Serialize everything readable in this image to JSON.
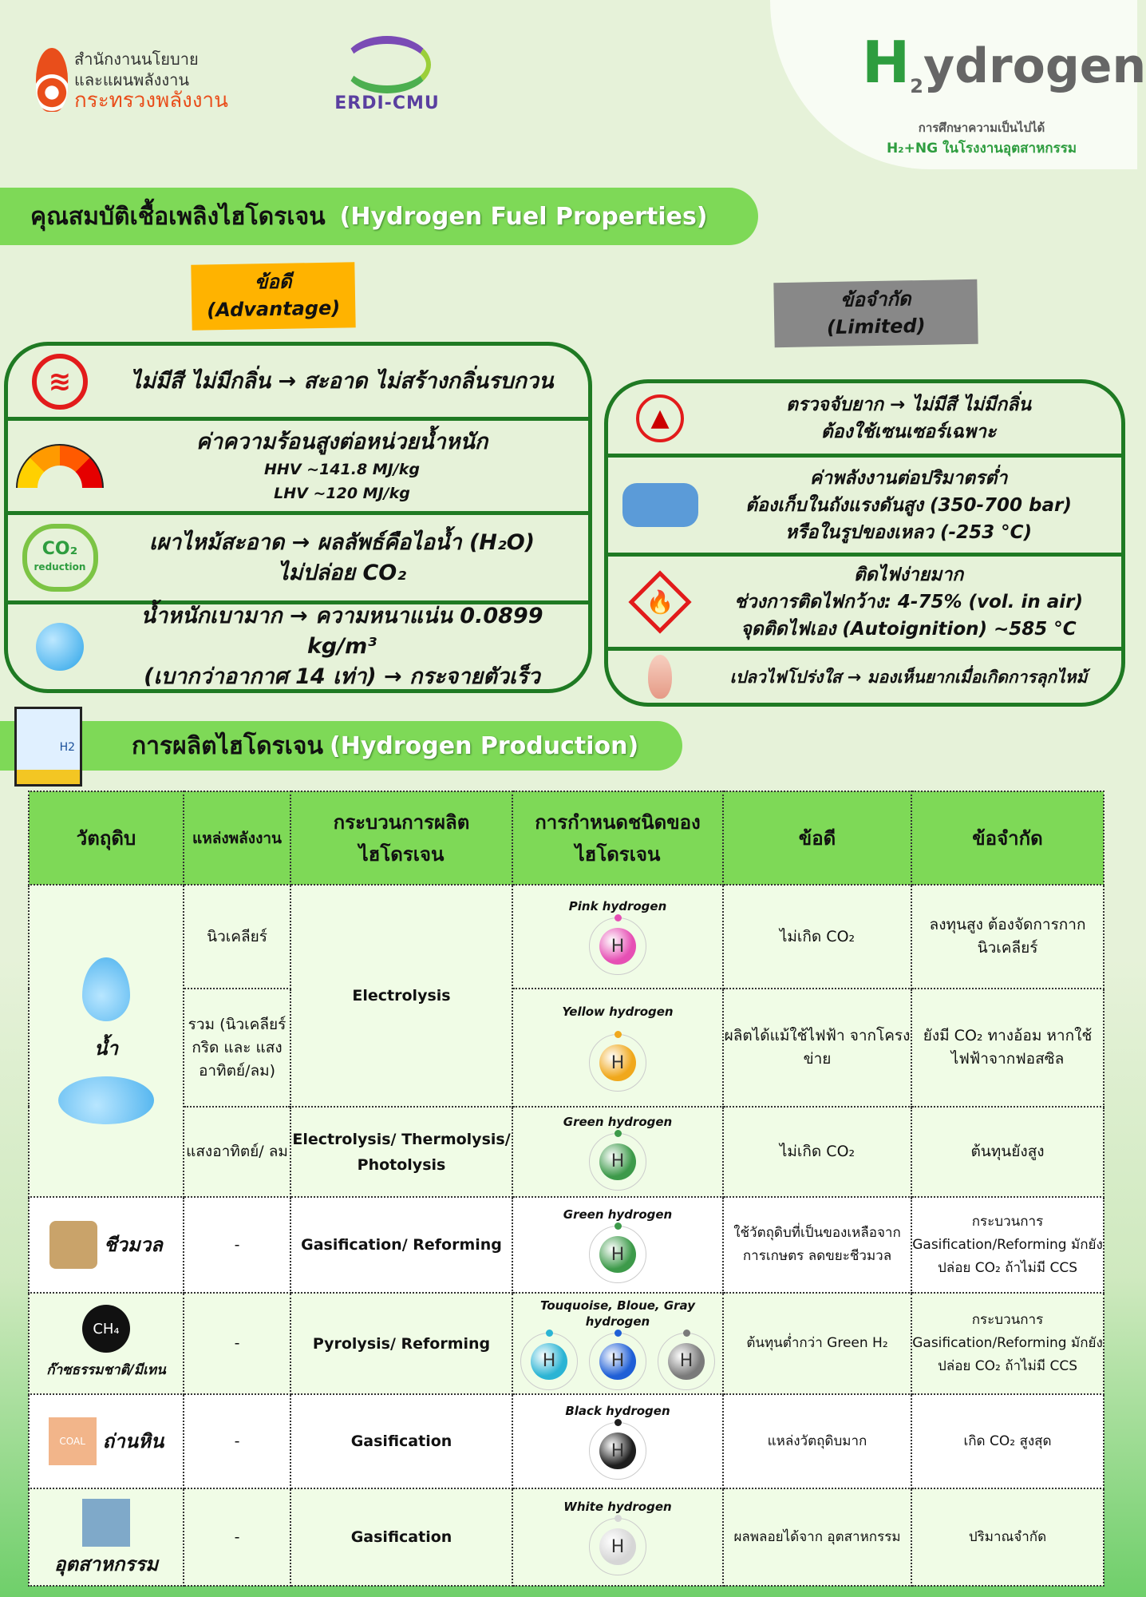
{
  "header": {
    "logo_ministry": {
      "line1": "สำนักงานนโยบาย",
      "line2": "และแผนพลังงาน",
      "line3": "กระทรวงพลังงาน"
    },
    "logo_erdi": "ERDI-CMU",
    "logo_project": {
      "mark_prefix": "H",
      "mark_sub": "2",
      "mark_rest": "ydrogen",
      "sub1": "การศึกษาความเป็นไปได้",
      "sub2": "H₂+NG ในโรงงานอุตสาหกรรม"
    }
  },
  "properties": {
    "title_th": "คุณสมบัติเชื้อเพลิงไฮโดรเจน",
    "title_en": "(Hydrogen Fuel Properties)",
    "advantage": {
      "tag_th": "ข้อดี",
      "tag_en": "(Advantage)",
      "items": [
        {
          "icon": "no-fire-icon",
          "lines": [
            "ไม่มีสี ไม่มีกลิ่น → สะอาด ไม่สร้างกลิ่นรบกวน"
          ]
        },
        {
          "icon": "gauge-icon",
          "lines": [
            "ค่าความร้อนสูงต่อหน่วยน้ำหนัก",
            "HHV ~141.8 MJ/kg",
            "LHV ~120 MJ/kg"
          ]
        },
        {
          "icon": "co2-reduction-icon",
          "icon_text": "CO₂",
          "icon_sub": "reduction",
          "lines": [
            "เผาไหม้สะอาด → ผลลัพธ์คือไอน้ำ (H₂O)",
            "ไม่ปล่อย CO₂"
          ]
        },
        {
          "icon": "molecule-icon",
          "lines": [
            "น้ำหนักเบามาก → ความหนาแน่น 0.0899 kg/m³",
            "(เบากว่าอากาศ 14 เท่า) → กระจายตัวเร็ว"
          ]
        }
      ]
    },
    "limited": {
      "tag_th": "ข้อจำกัด",
      "tag_en": "(Limited)",
      "items": [
        {
          "icon": "no-smell-icon",
          "lines": [
            "ตรวจจับยาก → ไม่มีสี ไม่มีกลิ่น",
            "ต้องใช้เซนเซอร์เฉพาะ"
          ]
        },
        {
          "icon": "pressure-tank-icon",
          "lines": [
            "ค่าพลังงานต่อปริมาตรต่ำ",
            "ต้องเก็บในถังแรงดันสูง (350-700 bar)",
            "หรือในรูปของเหลว (-253 °C)"
          ]
        },
        {
          "icon": "flammable-icon",
          "lines": [
            "ติดไฟง่ายมาก",
            "ช่วงการติดไฟกว้าง: 4-75% (vol. in air)",
            "จุดติดไฟเอง (Autoignition) ~585 °C"
          ]
        },
        {
          "icon": "flame-icon",
          "lines": [
            "เปลวไฟโปร่งใส → มองเห็นยากเมื่อเกิดการลุกไหม้"
          ]
        }
      ]
    }
  },
  "production": {
    "title_th": "การผลิตไฮโดรเจน",
    "title_en": "(Hydrogen Production)",
    "icon_label": "H2",
    "columns": [
      "วัตถุดิบ",
      "แหล่งพลังงาน",
      "กระบวนการผลิตไฮโดรเจน",
      "การกำหนดชนิดของไฮโดรเจน",
      "ข้อดี",
      "ข้อจำกัด"
    ],
    "water": {
      "material": "น้ำ",
      "process_electrolysis": "Electrolysis",
      "rows": [
        {
          "source": "นิวเคลียร์",
          "type": "Pink hydrogen",
          "color": "#e64fb4",
          "pros": "ไม่เกิด CO₂",
          "cons": "ลงทุนสูง ต้องจัดการกากนิวเคลียร์"
        },
        {
          "source": "รวม (นิวเคลียร์ กริด และ แสงอาทิตย์/ลม)",
          "type": "Yellow hydrogen",
          "color": "#f0a81c",
          "pros": "ผลิตได้แม้ใช้ไฟฟ้า จากโครงข่าย",
          "cons": "ยังมี CO₂ ทางอ้อม หากใช้ไฟฟ้าจากฟอสซิล"
        },
        {
          "source": "แสงอาทิตย์/ ลม",
          "process": "Electrolysis/ Thermolysis/ Photolysis",
          "type": "Green hydrogen",
          "color": "#3d9a4a",
          "pros": "ไม่เกิด CO₂",
          "cons": "ต้นทุนยังสูง"
        }
      ]
    },
    "rows": [
      {
        "material": "ชีวมวล",
        "icon": "biomass-icon",
        "source": "-",
        "process": "Gasification/ Reforming",
        "type": "Green hydrogen",
        "colors": [
          "#3d9a4a"
        ],
        "pros": "ใช้วัตถุดิบที่เป็นของเหลือจาก การเกษตร ลดขยะชีวมวล",
        "cons": "กระบวนการ Gasification/Reforming มักยังปล่อย CO₂ ถ้าไม่มี CCS",
        "bg": "w"
      },
      {
        "material": "ก๊าซธรรมชาติ/มีเทน",
        "icon": "methane-cloud-icon",
        "icon_text": "CH₄",
        "source": "-",
        "process": "Pyrolysis/ Reforming",
        "type": "Touquoise, Bloue, Gray  hydrogen",
        "colors": [
          "#2bb4d4",
          "#1f5fd6",
          "#7a7a7a"
        ],
        "pros": "ต้นทุนต่ำกว่า Green H₂",
        "cons": "กระบวนการ Gasification/Reforming มักยังปล่อย CO₂ ถ้าไม่มี CCS",
        "bg": "l"
      },
      {
        "material": "ถ่านหิน",
        "icon": "coal-bag-icon",
        "icon_text": "COAL",
        "source": "-",
        "process": "Gasification",
        "type": "Black hydrogen",
        "colors": [
          "#1e1e1e"
        ],
        "pros": "แหล่งวัตถุดิบมาก",
        "cons": "เกิด CO₂ สูงสุด",
        "bg": "w"
      },
      {
        "material": "อุตสาหกรรม",
        "icon": "factory-icon",
        "source": "-",
        "process": "Gasification",
        "type": "White hydrogen",
        "colors": [
          "#d6d6d6"
        ],
        "pros": "ผลพลอยได้จาก อุตสาหกรรม",
        "cons": "ปริมาณจำกัด",
        "bg": "l"
      }
    ],
    "atom_letter": "H"
  },
  "colors": {
    "banner": "#7ed957",
    "border": "#1f7a23",
    "advantage_tag": "#ffb300",
    "limited_tag": "#888888",
    "background": "#e6f2d9"
  }
}
